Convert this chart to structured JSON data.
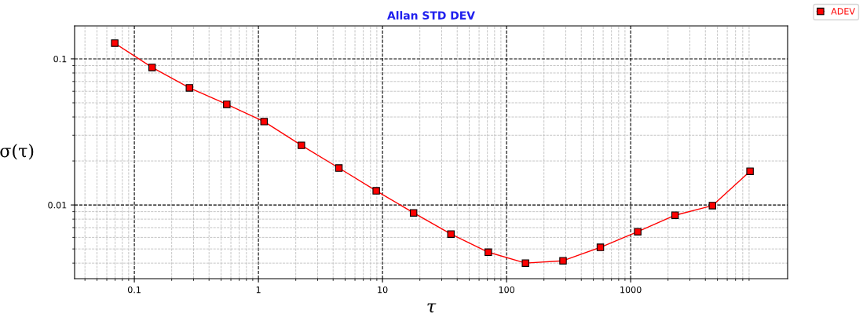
{
  "chart_data": {
    "type": "line",
    "title": "Allan STD DEV",
    "xlabel": "τ",
    "ylabel": "σ(τ)",
    "log": "xy",
    "x": [
      0.0695,
      0.139,
      0.278,
      0.556,
      1.11,
      2.22,
      4.45,
      8.9,
      17.8,
      35.6,
      71.2,
      142,
      285,
      570,
      1140,
      2280,
      4560,
      9160
    ],
    "series": [
      {
        "name": "ADEV",
        "color": "#ff0000",
        "values": [
          0.128,
          0.0873,
          0.0633,
          0.0488,
          0.0372,
          0.0256,
          0.0179,
          0.0125,
          0.00883,
          0.00632,
          0.00475,
          0.004,
          0.00415,
          0.00513,
          0.00656,
          0.0085,
          0.0099,
          0.017
        ]
      }
    ],
    "xlim": [
      0.033,
      18400
    ],
    "ylim": [
      0.00313,
      0.168
    ],
    "xticks": [
      0.1,
      1,
      10,
      100,
      1000
    ],
    "yticks": [
      0.01,
      0.1
    ],
    "grid": true,
    "legend": "top right",
    "marker": "square",
    "line_style": "solid"
  }
}
